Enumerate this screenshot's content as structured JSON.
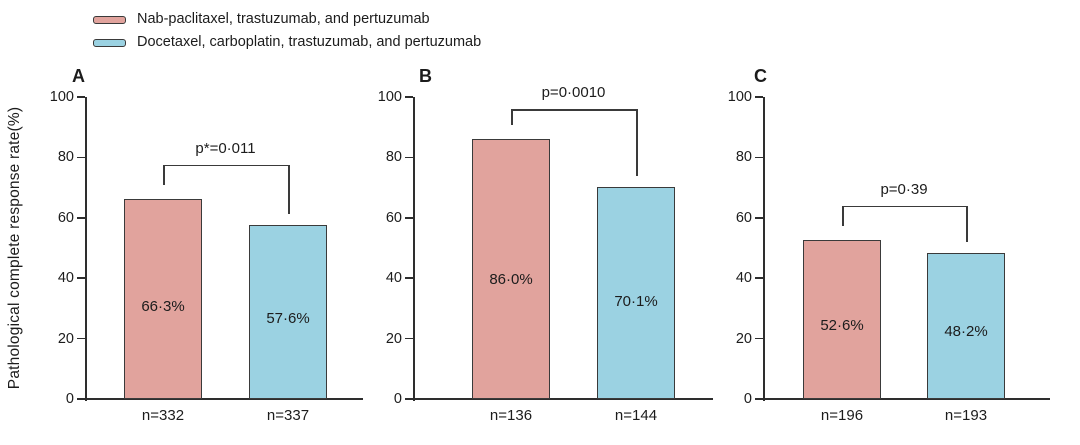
{
  "figure": {
    "y_axis_title": "Pathological complete response rate(%)"
  },
  "chart_data": {
    "type": "bar",
    "title": "",
    "xlabel": "",
    "ylabel": "Pathological complete response rate(%)",
    "ylim": [
      0,
      100
    ],
    "yticks": [
      0,
      20,
      40,
      60,
      80,
      100
    ],
    "grid": false,
    "legend_position": "top-left",
    "decimal_separator": "middle-dot",
    "series": [
      {
        "name": "Nab-paclitaxel, trastuzumab, and pertuzumab",
        "color": "#e1a39d"
      },
      {
        "name": "Docetaxel, carboplatin, trastuzumab, and pertuzumab",
        "color": "#9bd2e2"
      }
    ],
    "panels": [
      {
        "label": "A",
        "p_value": "p*=0·011",
        "bracket_y": 77.5,
        "bars": [
          {
            "series": "Nab-paclitaxel, trastuzumab, and pertuzumab",
            "value": 66.3,
            "value_label": "66·3%",
            "n_label": "n=332"
          },
          {
            "series": "Docetaxel, carboplatin, trastuzumab, and pertuzumab",
            "value": 57.6,
            "value_label": "57·6%",
            "n_label": "n=337"
          }
        ]
      },
      {
        "label": "B",
        "p_value": "p=0·0010",
        "bracket_y": 96,
        "bars": [
          {
            "series": "Nab-paclitaxel, trastuzumab, and pertuzumab",
            "value": 86.0,
            "value_label": "86·0%",
            "n_label": "n=136"
          },
          {
            "series": "Docetaxel, carboplatin, trastuzumab, and pertuzumab",
            "value": 70.1,
            "value_label": "70·1%",
            "n_label": "n=144"
          }
        ]
      },
      {
        "label": "C",
        "p_value": "p=0·39",
        "bracket_y": 64,
        "bars": [
          {
            "series": "Nab-paclitaxel, trastuzumab, and pertuzumab",
            "value": 52.6,
            "value_label": "52·6%",
            "n_label": "n=196"
          },
          {
            "series": "Docetaxel, carboplatin, trastuzumab, and pertuzumab",
            "value": 48.2,
            "value_label": "48·2%",
            "n_label": "n=193"
          }
        ]
      }
    ]
  }
}
